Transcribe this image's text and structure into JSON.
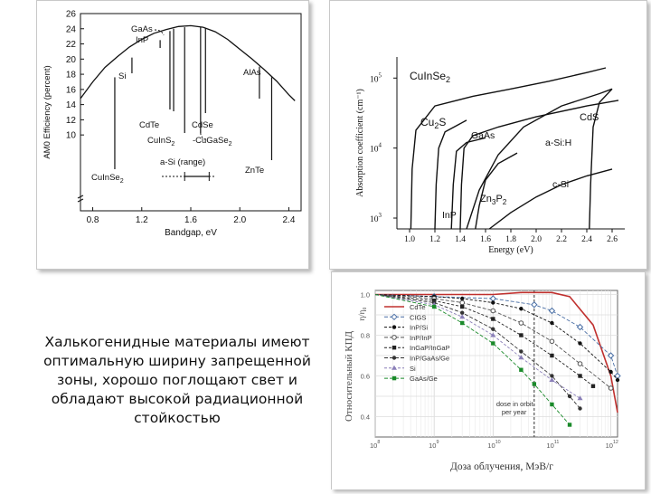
{
  "caption": "Халькогенидные материалы имеют оптимальную ширину запрещенной зоны, хорошо поглощают свет и обладают высокой радиационной стойкостью",
  "chart_data": [
    {
      "type": "line",
      "xlabel": "Bandgap, eV",
      "ylabel": "AM0 Efficiency (percent)",
      "xlim": [
        0.7,
        2.5
      ],
      "ylim": [
        0,
        26
      ],
      "xticks": [
        "0.8",
        "1.2",
        "1.6",
        "2.0",
        "2.4"
      ],
      "yticks": [
        "10",
        "12",
        "14",
        "16",
        "18",
        "20",
        "22",
        "24",
        "26"
      ],
      "curve": [
        [
          0.7,
          14.8
        ],
        [
          0.8,
          17.0
        ],
        [
          0.9,
          18.9
        ],
        [
          1.0,
          20.3
        ],
        [
          1.1,
          21.6
        ],
        [
          1.2,
          22.6
        ],
        [
          1.3,
          23.4
        ],
        [
          1.4,
          23.9
        ],
        [
          1.5,
          24.3
        ],
        [
          1.6,
          24.4
        ],
        [
          1.7,
          24.2
        ],
        [
          1.8,
          23.6
        ],
        [
          1.9,
          22.6
        ],
        [
          2.0,
          21.3
        ],
        [
          2.1,
          20.0
        ],
        [
          2.2,
          18.6
        ],
        [
          2.3,
          17.1
        ],
        [
          2.4,
          15.3
        ],
        [
          2.45,
          14.5
        ]
      ],
      "materials": [
        {
          "label": "CuInSe",
          "sub": "2",
          "x": 0.98,
          "y": 17.6
        },
        {
          "label": "Si",
          "x": 1.12,
          "y": 20.2
        },
        {
          "label": "InP",
          "x": 1.35,
          "y": 22.5
        },
        {
          "label": "GaAs",
          "x": 1.43,
          "y": 23.7
        },
        {
          "label": "CdTe",
          "x": 1.46,
          "y": 24.0
        },
        {
          "label": "CuInS",
          "sub": "2",
          "x": 1.55,
          "y": 24.2
        },
        {
          "label": "CdSe",
          "x": 1.72,
          "y": 24.1
        },
        {
          "label": "CuGaSe",
          "sub": "2",
          "x": 1.68,
          "y": 24.2
        },
        {
          "label": "AlAs",
          "x": 2.16,
          "y": 19.0
        },
        {
          "label": "ZnTe",
          "x": 2.26,
          "y": 17.6
        }
      ],
      "range_label": "a-Si (range)",
      "range": [
        1.55,
        1.75
      ]
    },
    {
      "type": "line",
      "xlabel": "Energy (eV)",
      "ylabel": "Absorption coefficient (cm⁻¹)",
      "xlim": [
        0.9,
        2.7
      ],
      "ylog": true,
      "ylim": [
        700,
        200000
      ],
      "xticks": [
        "1.0",
        "1.2",
        "1.4",
        "1.6",
        "1.8",
        "2.0",
        "2.2",
        "2.4",
        "2.6"
      ],
      "yticks": [
        {
          "base": "10",
          "exp": "3",
          "value": 1000
        },
        {
          "base": "10",
          "exp": "4",
          "value": 10000
        },
        {
          "base": "10",
          "exp": "5",
          "value": 100000
        }
      ],
      "series": [
        {
          "name": "CuInSe2",
          "label": "CuInSe",
          "sub": "2",
          "points": [
            [
              1.01,
              700
            ],
            [
              1.02,
              5000
            ],
            [
              1.05,
              18000
            ],
            [
              1.2,
              40000
            ],
            [
              1.5,
              55000
            ],
            [
              1.8,
              70000
            ],
            [
              2.1,
              90000
            ],
            [
              2.4,
              120000
            ],
            [
              2.55,
              140000
            ]
          ]
        },
        {
          "name": "Cu2S",
          "label": "Cu",
          "sub": "2",
          "label2": "S",
          "points": [
            [
              1.2,
              700
            ],
            [
              1.21,
              3000
            ],
            [
              1.23,
              10000
            ],
            [
              1.28,
              17000
            ],
            [
              1.45,
              25000
            ]
          ]
        },
        {
          "name": "GaAs",
          "label": "GaAs",
          "points": [
            [
              1.4,
              700
            ],
            [
              1.41,
              3000
            ],
            [
              1.43,
              10000
            ],
            [
              1.5,
              15000
            ],
            [
              1.7,
              20000
            ],
            [
              2.0,
              28000
            ],
            [
              2.4,
              40000
            ],
            [
              2.65,
              48000
            ]
          ]
        },
        {
          "name": "InP",
          "label": "InP",
          "points": [
            [
              1.33,
              700
            ],
            [
              1.345,
              3000
            ],
            [
              1.37,
              9000
            ],
            [
              1.45,
              12000
            ],
            [
              1.6,
              14000
            ]
          ]
        },
        {
          "name": "a-Si:H",
          "label": "a-Si:H",
          "points": [
            [
              1.45,
              700
            ],
            [
              1.55,
              2500
            ],
            [
              1.7,
              8000
            ],
            [
              1.9,
              20000
            ],
            [
              2.2,
              40000
            ],
            [
              2.5,
              60000
            ],
            [
              2.6,
              70000
            ]
          ]
        },
        {
          "name": "Zn3P2",
          "label": "Zn",
          "sub": "3",
          "label2": "P",
          "sub2": "2",
          "points": [
            [
              1.52,
              700
            ],
            [
              1.55,
              1500
            ],
            [
              1.6,
              3500
            ],
            [
              1.7,
              6000
            ],
            [
              1.85,
              8500
            ]
          ]
        },
        {
          "name": "c-Si",
          "label": "c-Si",
          "points": [
            [
              1.63,
              700
            ],
            [
              1.8,
              1200
            ],
            [
              2.0,
              2000
            ],
            [
              2.2,
              3000
            ],
            [
              2.4,
              4000
            ],
            [
              2.6,
              5000
            ]
          ]
        },
        {
          "name": "CdS",
          "label": "CdS",
          "points": [
            [
              2.42,
              700
            ],
            [
              2.43,
              3000
            ],
            [
              2.45,
              20000
            ],
            [
              2.5,
              45000
            ],
            [
              2.6,
              70000
            ]
          ]
        }
      ]
    },
    {
      "type": "line",
      "xlabel": "Доза облучения, МэВ/г",
      "ylabel": "Относительный КПД",
      "ylabel_right": "η/η₀",
      "xlog": true,
      "xlim": [
        100000000,
        1300000000000
      ],
      "ylim": [
        0.3,
        1.02
      ],
      "xticks": [
        {
          "base": "10",
          "exp": "8"
        },
        {
          "base": "10",
          "exp": "9"
        },
        {
          "base": "10",
          "exp": "10"
        },
        {
          "base": "10",
          "exp": "11"
        },
        {
          "base": "10",
          "exp": "12"
        }
      ],
      "yticks": [
        "1.0",
        "0.8",
        "0.6",
        "0.4"
      ],
      "annotation": "dose in orbit per year",
      "annotation_x": 50000000000,
      "series": [
        {
          "name": "CdTe",
          "color": "#c0302e",
          "points": [
            [
              100000000.0,
              1.0
            ],
            [
              1000000000.0,
              1.0
            ],
            [
              10000000000.0,
              1.0
            ],
            [
              30000000000.0,
              1.01
            ],
            [
              100000000000.0,
              1.01
            ],
            [
              200000000000.0,
              0.99
            ],
            [
              500000000000.0,
              0.85
            ],
            [
              1000000000000.0,
              0.6
            ],
            [
              1300000000000.0,
              0.42
            ]
          ]
        },
        {
          "name": "CIGS",
          "color": "#4a6fa5",
          "points": [
            [
              100000000.0,
              1.0
            ],
            [
              1000000000.0,
              0.99
            ],
            [
              10000000000.0,
              0.98
            ],
            [
              50000000000.0,
              0.95
            ],
            [
              100000000000.0,
              0.92
            ],
            [
              300000000000.0,
              0.84
            ],
            [
              1000000000000.0,
              0.7
            ],
            [
              1300000000000.0,
              0.6
            ]
          ]
        },
        {
          "name": "InP/Si",
          "color": "#111111",
          "points": [
            [
              100000000.0,
              1.0
            ],
            [
              1000000000.0,
              0.99
            ],
            [
              3000000000.0,
              0.98
            ],
            [
              10000000000.0,
              0.96
            ],
            [
              30000000000.0,
              0.93
            ],
            [
              100000000000.0,
              0.86
            ],
            [
              300000000000.0,
              0.76
            ],
            [
              1000000000000.0,
              0.62
            ],
            [
              1300000000000.0,
              0.58
            ]
          ]
        },
        {
          "name": "InP/InP",
          "color": "#555555",
          "points": [
            [
              100000000.0,
              1.0
            ],
            [
              1000000000.0,
              0.98
            ],
            [
              3000000000.0,
              0.96
            ],
            [
              10000000000.0,
              0.92
            ],
            [
              30000000000.0,
              0.86
            ],
            [
              100000000000.0,
              0.77
            ],
            [
              300000000000.0,
              0.66
            ],
            [
              1000000000000.0,
              0.54
            ]
          ]
        },
        {
          "name": "InGaP/InGaP",
          "color": "#222222",
          "points": [
            [
              100000000.0,
              1.0
            ],
            [
              1000000000.0,
              0.97
            ],
            [
              3000000000.0,
              0.94
            ],
            [
              10000000000.0,
              0.88
            ],
            [
              30000000000.0,
              0.8
            ],
            [
              100000000000.0,
              0.7
            ],
            [
              300000000000.0,
              0.6
            ],
            [
              500000000000.0,
              0.55
            ]
          ]
        },
        {
          "name": "InP/GaAs/Ge",
          "color": "#333333",
          "points": [
            [
              100000000.0,
              1.0
            ],
            [
              1000000000.0,
              0.96
            ],
            [
              3000000000.0,
              0.91
            ],
            [
              10000000000.0,
              0.83
            ],
            [
              30000000000.0,
              0.72
            ],
            [
              100000000000.0,
              0.6
            ],
            [
              200000000000.0,
              0.5
            ],
            [
              300000000000.0,
              0.44
            ]
          ]
        },
        {
          "name": "Si",
          "color": "#8a7fb8",
          "points": [
            [
              100000000.0,
              1.0
            ],
            [
              1000000000.0,
              0.95
            ],
            [
              3000000000.0,
              0.89
            ],
            [
              10000000000.0,
              0.8
            ],
            [
              30000000000.0,
              0.69
            ],
            [
              100000000000.0,
              0.58
            ],
            [
              300000000000.0,
              0.49
            ]
          ]
        },
        {
          "name": "GaAs/Ge",
          "color": "#1a8a2a",
          "points": [
            [
              100000000.0,
              1.0
            ],
            [
              1000000000.0,
              0.94
            ],
            [
              3000000000.0,
              0.86
            ],
            [
              10000000000.0,
              0.76
            ],
            [
              30000000000.0,
              0.63
            ],
            [
              50000000000.0,
              0.56
            ],
            [
              100000000000.0,
              0.46
            ],
            [
              200000000000.0,
              0.36
            ]
          ]
        }
      ]
    }
  ]
}
